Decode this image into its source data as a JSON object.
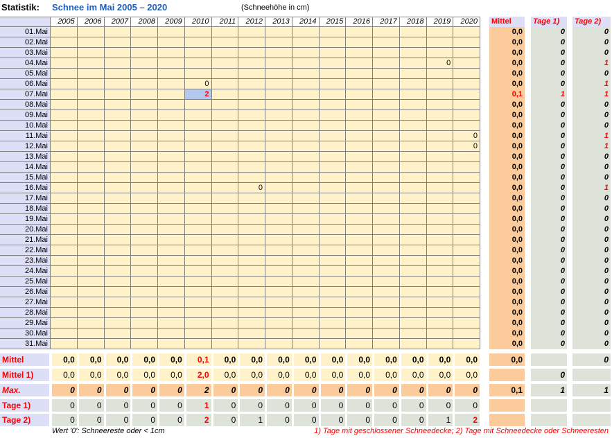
{
  "header": {
    "label": "Statistik:",
    "title": "Schnee im Mai 2005 – 2020",
    "subtitle": "(Schneehöhe in cm)"
  },
  "table": {
    "columns": [
      "2005",
      "2006",
      "2007",
      "2008",
      "2009",
      "2010",
      "2011",
      "2012",
      "2013",
      "2014",
      "2015",
      "2016",
      "2017",
      "2018",
      "2019",
      "2020"
    ],
    "mittel_header": "Mittel",
    "tage1_header": "Tage 1)",
    "tage2_header": "Tage 2)",
    "rows": [
      {
        "day": "01.Mai",
        "mittel": "0,0",
        "tage1": "0",
        "tage2": "0"
      },
      {
        "day": "02.Mai",
        "mittel": "0,0",
        "tage1": "0",
        "tage2": "0"
      },
      {
        "day": "03.Mai",
        "mittel": "0,0",
        "tage1": "0",
        "tage2": "0"
      },
      {
        "day": "04.Mai",
        "cells": {
          "14": "0"
        },
        "mittel": "0,0",
        "tage1": "0",
        "tage2": "1"
      },
      {
        "day": "05.Mai",
        "mittel": "0,0",
        "tage1": "0",
        "tage2": "0"
      },
      {
        "day": "06.Mai",
        "cells": {
          "5": "0"
        },
        "mittel": "0,0",
        "tage1": "0",
        "tage2": "1"
      },
      {
        "day": "07.Mai",
        "cells": {
          "5": "2"
        },
        "mittel": "0,1",
        "tage1": "1",
        "tage2": "1"
      },
      {
        "day": "08.Mai",
        "mittel": "0,0",
        "tage1": "0",
        "tage2": "0"
      },
      {
        "day": "09.Mai",
        "mittel": "0,0",
        "tage1": "0",
        "tage2": "0"
      },
      {
        "day": "10.Mai",
        "mittel": "0,0",
        "tage1": "0",
        "tage2": "0"
      },
      {
        "day": "11.Mai",
        "cells": {
          "15": "0"
        },
        "mittel": "0,0",
        "tage1": "0",
        "tage2": "1"
      },
      {
        "day": "12.Mai",
        "cells": {
          "15": "0"
        },
        "mittel": "0,0",
        "tage1": "0",
        "tage2": "1"
      },
      {
        "day": "13.Mai",
        "mittel": "0,0",
        "tage1": "0",
        "tage2": "0"
      },
      {
        "day": "14.Mai",
        "mittel": "0,0",
        "tage1": "0",
        "tage2": "0"
      },
      {
        "day": "15.Mai",
        "mittel": "0,0",
        "tage1": "0",
        "tage2": "0"
      },
      {
        "day": "16.Mai",
        "cells": {
          "7": "0"
        },
        "mittel": "0,0",
        "tage1": "0",
        "tage2": "1"
      },
      {
        "day": "17.Mai",
        "mittel": "0,0",
        "tage1": "0",
        "tage2": "0"
      },
      {
        "day": "18.Mai",
        "mittel": "0,0",
        "tage1": "0",
        "tage2": "0"
      },
      {
        "day": "19.Mai",
        "mittel": "0,0",
        "tage1": "0",
        "tage2": "0"
      },
      {
        "day": "20.Mai",
        "mittel": "0,0",
        "tage1": "0",
        "tage2": "0"
      },
      {
        "day": "21.Mai",
        "mittel": "0,0",
        "tage1": "0",
        "tage2": "0"
      },
      {
        "day": "22.Mai",
        "mittel": "0,0",
        "tage1": "0",
        "tage2": "0"
      },
      {
        "day": "23.Mai",
        "mittel": "0,0",
        "tage1": "0",
        "tage2": "0"
      },
      {
        "day": "24.Mai",
        "mittel": "0,0",
        "tage1": "0",
        "tage2": "0"
      },
      {
        "day": "25.Mai",
        "mittel": "0,0",
        "tage1": "0",
        "tage2": "0"
      },
      {
        "day": "26.Mai",
        "mittel": "0,0",
        "tage1": "0",
        "tage2": "0"
      },
      {
        "day": "27.Mai",
        "mittel": "0,0",
        "tage1": "0",
        "tage2": "0"
      },
      {
        "day": "28.Mai",
        "mittel": "0,0",
        "tage1": "0",
        "tage2": "0"
      },
      {
        "day": "29.Mai",
        "mittel": "0,0",
        "tage1": "0",
        "tage2": "0"
      },
      {
        "day": "30.Mai",
        "mittel": "0,0",
        "tage1": "0",
        "tage2": "0"
      },
      {
        "day": "31.Mai",
        "mittel": "0,0",
        "tage1": "0",
        "tage2": "0"
      }
    ],
    "summary": [
      {
        "label": "Mittel",
        "values": [
          "0,0",
          "0,0",
          "0,0",
          "0,0",
          "0,0",
          "0,1",
          "0,0",
          "0,0",
          "0,0",
          "0,0",
          "0,0",
          "0,0",
          "0,0",
          "0,0",
          "0,0",
          "0,0"
        ],
        "mittel": "0,0",
        "tage2": "0"
      },
      {
        "label": "Mittel 1)",
        "values": [
          "0,0",
          "0,0",
          "0,0",
          "0,0",
          "0,0",
          "2,0",
          "0,0",
          "0,0",
          "0,0",
          "0,0",
          "0,0",
          "0,0",
          "0,0",
          "0,0",
          "0,0",
          "0,0"
        ],
        "tage1": "0"
      },
      {
        "label": "Max.",
        "values": [
          "0",
          "0",
          "0",
          "0",
          "0",
          "2",
          "0",
          "0",
          "0",
          "0",
          "0",
          "0",
          "0",
          "0",
          "0",
          "0"
        ],
        "mittel": "0,1",
        "tage1": "1",
        "tage2": "1"
      },
      {
        "label": "Tage 1)",
        "values": [
          "0",
          "0",
          "0",
          "0",
          "0",
          "1",
          "0",
          "0",
          "0",
          "0",
          "0",
          "0",
          "0",
          "0",
          "0",
          "0"
        ]
      },
      {
        "label": "Tage 2)",
        "values": [
          "0",
          "0",
          "0",
          "0",
          "0",
          "2",
          "0",
          "1",
          "0",
          "0",
          "0",
          "0",
          "0",
          "0",
          "1",
          "2"
        ]
      }
    ]
  },
  "footer": {
    "left": "Wert '0': Schneereste oder < 1cm",
    "right": "1) Tage mit geschlossener Schneedecke;  2) Tage mit Schneedecke oder Schneeresten"
  }
}
